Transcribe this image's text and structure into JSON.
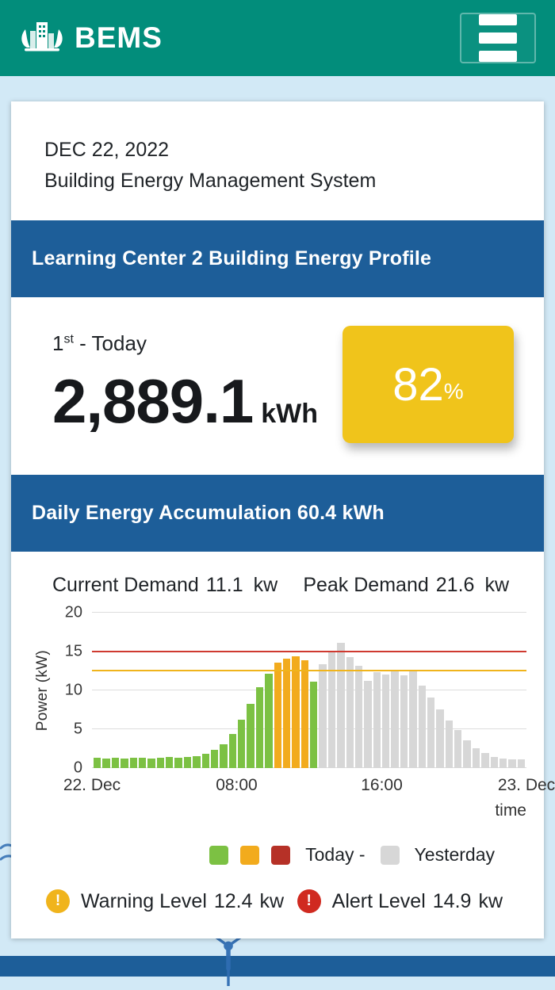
{
  "header": {
    "app_name": "BEMS"
  },
  "intro": {
    "date": "DEC 22, 2022",
    "title": "Building Energy Management System"
  },
  "profile": {
    "header": "Learning Center 2 Building Energy Profile",
    "period_number": "1",
    "period_ordinal": "st",
    "period_rest": " - Today",
    "energy_value": "2,889.1",
    "energy_unit": "kWh",
    "percent_value": "82",
    "percent_sign": "%"
  },
  "daily": {
    "header": "Daily Energy Accumulation 60.4 kWh",
    "current_label": "Current Demand",
    "current_value": "11.1",
    "current_unit": "kw",
    "peak_label": "Peak Demand",
    "peak_value": "21.6",
    "peak_unit": "kw"
  },
  "legend": {
    "today_label": "Today -",
    "yesterday_label": "Yesterday"
  },
  "levels": {
    "exclamation": "!",
    "warning_label": "Warning Level",
    "warning_value": "12.4",
    "warning_unit": "kw",
    "alert_label": "Alert Level",
    "alert_value": "14.9",
    "alert_unit": "kw"
  },
  "colors": {
    "teal": "#028d7b",
    "panel_blue": "#1d5e99",
    "yellow_card": "#f0c41b",
    "background": "#d2e9f6",
    "bar_green": "#7cc143",
    "bar_orange": "#f2ab1d",
    "bar_red": "#b63127",
    "bar_gray": "#d7d7d7",
    "warning_line": "#f0b41c",
    "alert_line": "#cf3a30",
    "warning_icon": "#f0b41c",
    "alert_icon": "#d02a20",
    "art_blue": "#2f6db3"
  },
  "chart_data": {
    "type": "bar",
    "title": "",
    "ylabel": "Power (kW)",
    "xlabel": "time",
    "ylim": [
      0,
      20
    ],
    "yticks": [
      0,
      5,
      10,
      15,
      20
    ],
    "xticks": [
      {
        "label": "22. Dec",
        "pos": 0
      },
      {
        "label": "08:00",
        "pos": 33.3
      },
      {
        "label": "16:00",
        "pos": 66.7
      },
      {
        "label": "23. Dec",
        "pos": 100
      }
    ],
    "warning_line": 12.4,
    "alert_line": 14.9,
    "interval_minutes": 30,
    "legend_position": "bottom",
    "grid": true,
    "bars": [
      {
        "v": 1.3,
        "c": "green"
      },
      {
        "v": 1.2,
        "c": "green"
      },
      {
        "v": 1.3,
        "c": "green"
      },
      {
        "v": 1.2,
        "c": "green"
      },
      {
        "v": 1.3,
        "c": "green"
      },
      {
        "v": 1.3,
        "c": "green"
      },
      {
        "v": 1.2,
        "c": "green"
      },
      {
        "v": 1.3,
        "c": "green"
      },
      {
        "v": 1.4,
        "c": "green"
      },
      {
        "v": 1.3,
        "c": "green"
      },
      {
        "v": 1.4,
        "c": "green"
      },
      {
        "v": 1.5,
        "c": "green"
      },
      {
        "v": 1.8,
        "c": "green"
      },
      {
        "v": 2.3,
        "c": "green"
      },
      {
        "v": 3.1,
        "c": "green"
      },
      {
        "v": 4.4,
        "c": "green"
      },
      {
        "v": 6.2,
        "c": "green"
      },
      {
        "v": 8.3,
        "c": "green"
      },
      {
        "v": 10.4,
        "c": "green"
      },
      {
        "v": 12.1,
        "c": "green"
      },
      {
        "v": 13.6,
        "c": "orange"
      },
      {
        "v": 14.1,
        "c": "orange"
      },
      {
        "v": 14.4,
        "c": "orange"
      },
      {
        "v": 13.9,
        "c": "orange"
      },
      {
        "v": 11.1,
        "c": "green"
      },
      {
        "v": 13.4,
        "c": "gray"
      },
      {
        "v": 15.1,
        "c": "gray"
      },
      {
        "v": 16.1,
        "c": "gray"
      },
      {
        "v": 14.3,
        "c": "gray"
      },
      {
        "v": 13.2,
        "c": "gray"
      },
      {
        "v": 11.2,
        "c": "gray"
      },
      {
        "v": 12.3,
        "c": "gray"
      },
      {
        "v": 12.0,
        "c": "gray"
      },
      {
        "v": 12.6,
        "c": "gray"
      },
      {
        "v": 11.9,
        "c": "gray"
      },
      {
        "v": 12.4,
        "c": "gray"
      },
      {
        "v": 10.6,
        "c": "gray"
      },
      {
        "v": 9.1,
        "c": "gray"
      },
      {
        "v": 7.6,
        "c": "gray"
      },
      {
        "v": 6.1,
        "c": "gray"
      },
      {
        "v": 4.9,
        "c": "gray"
      },
      {
        "v": 3.6,
        "c": "gray"
      },
      {
        "v": 2.6,
        "c": "gray"
      },
      {
        "v": 1.9,
        "c": "gray"
      },
      {
        "v": 1.4,
        "c": "gray"
      },
      {
        "v": 1.2,
        "c": "gray"
      },
      {
        "v": 1.1,
        "c": "gray"
      },
      {
        "v": 1.1,
        "c": "gray"
      }
    ],
    "series": [
      {
        "name": "Today",
        "color_rule": "green below 12.4, orange 12.4-14.9, red above 14.9"
      },
      {
        "name": "Yesterday",
        "color": "gray"
      }
    ]
  }
}
